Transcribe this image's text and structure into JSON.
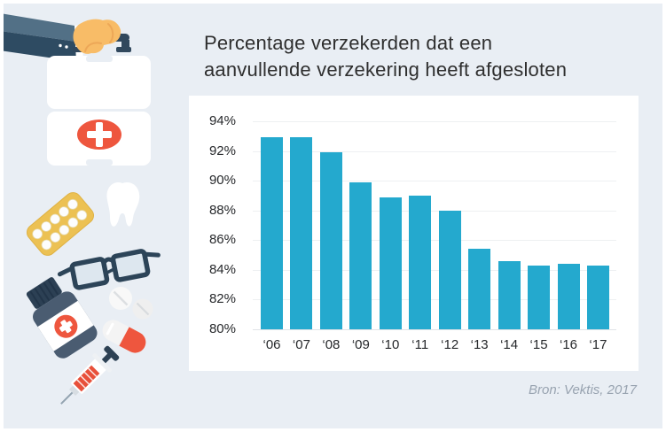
{
  "header": {
    "title_lines": [
      "Percentage verzekerden dat een",
      "aanvullende verzekering heeft afgesloten"
    ]
  },
  "footer": {
    "source": "Bron: Vektis, 2017"
  },
  "chart_data": {
    "type": "bar",
    "title": "Percentage verzekerden dat een aanvullende verzekering heeft afgesloten",
    "categories": [
      "‘06",
      "‘07",
      "‘08",
      "‘09",
      "‘10",
      "‘11",
      "‘12",
      "‘13",
      "‘14",
      "‘15",
      "‘16",
      "‘17"
    ],
    "values": [
      92.9,
      92.9,
      91.9,
      89.9,
      88.9,
      89.0,
      88.0,
      85.4,
      84.6,
      84.3,
      84.4,
      84.3
    ],
    "xlabel": "",
    "ylabel": "",
    "ylim": [
      80,
      94
    ],
    "yticks": [
      94,
      92,
      90,
      88,
      86,
      84,
      82,
      80
    ],
    "ytick_suffix": "%",
    "grid": true,
    "legend": false,
    "bar_color": "#24a9ce"
  },
  "colors": {
    "background": "#e9eef4",
    "panel": "#ffffff",
    "bar": "#24a9ce",
    "title_text": "#2e2e2e",
    "axis_text": "#26282b",
    "gridline": "#eef0f2",
    "source_text": "#98a3b0",
    "accent_red": "#ee563e",
    "navy_dark": "#2c4458",
    "slate": "#527086",
    "skin": "#f8bc67",
    "yellow": "#ecc153",
    "bottle_body": "#4a5c71"
  },
  "illustration": {
    "icons": [
      "arm-icon",
      "hand-icon",
      "first-aid-kit-icon",
      "blister-pack-icon",
      "tooth-icon",
      "glasses-icon",
      "tablets-icon",
      "medicine-bottle-icon",
      "capsule-icon",
      "syringe-icon"
    ]
  }
}
